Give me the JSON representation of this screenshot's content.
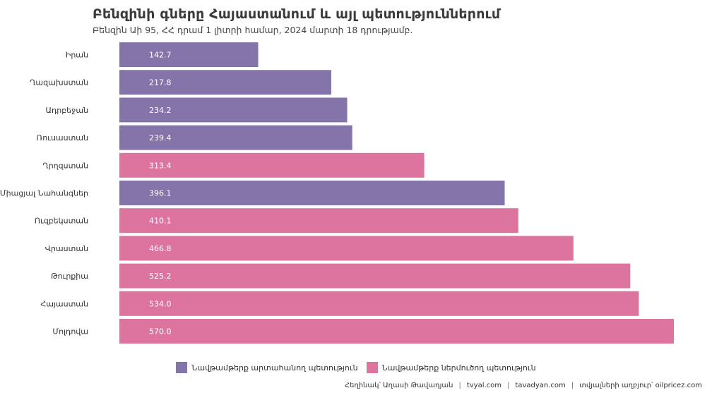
{
  "title": "Բենզինի գները Հայաստանում և այլ պետություններում",
  "subtitle": "Բենզին Աի 95, ՀՀ դրամ 1 լիտրի համար, 2024 մարտի 18 դրությամբ.",
  "legend": [
    {
      "label": "Նավթամթերք արտահանող պետություն",
      "color": "#8574aa"
    },
    {
      "label": "Նավթամթերք ներմուծող պետություն",
      "color": "#dd74a0"
    }
  ],
  "caption": {
    "author": "Հեղինակ՝ Աղասի Թավադյան",
    "site1": "tvyal.com",
    "site2": "tavadyan.com",
    "source": "տվյալների աղբյուր՝ oilpricez.com"
  },
  "chart_data": {
    "type": "bar",
    "orientation": "horizontal",
    "categories": [
      "Իրան",
      "Ղազախստան",
      "Ադրբեջան",
      "Ռուսաստան",
      "Ղրղզստան",
      "Միացյալ Նահանգներ",
      "Ուզբեկստան",
      "Վրաստան",
      "Թուրքիա",
      "Հայաստան",
      "Մոլդովա"
    ],
    "values": [
      142.7,
      217.8,
      234.2,
      239.4,
      313.4,
      396.1,
      410.1,
      466.8,
      525.2,
      534.0,
      570.0
    ],
    "value_labels": [
      "142.7",
      "217.8",
      "234.2",
      "239.4",
      "313.4",
      "396.1",
      "410.1",
      "466.8",
      "525.2",
      "534.0",
      "570.0"
    ],
    "groups": [
      "exporter",
      "exporter",
      "exporter",
      "exporter",
      "importer",
      "exporter",
      "importer",
      "importer",
      "importer",
      "importer",
      "importer"
    ],
    "group_colors": {
      "exporter": "#8574aa",
      "importer": "#dd74a0"
    },
    "xlim": [
      0,
      570
    ],
    "grid": false,
    "legend_position": "bottom"
  }
}
